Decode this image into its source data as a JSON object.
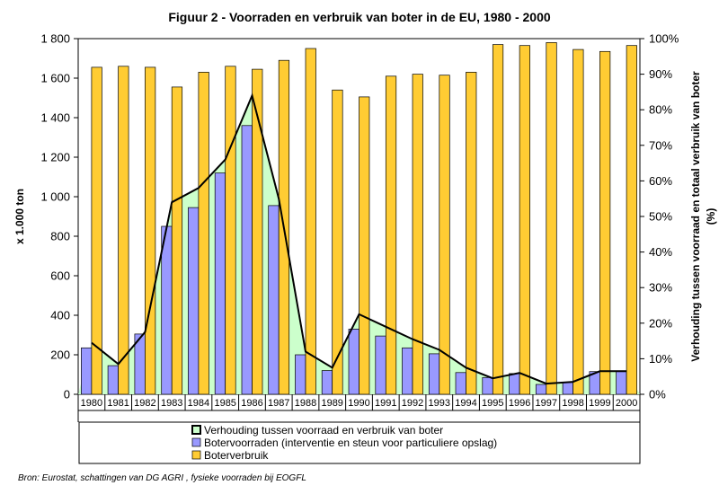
{
  "chart_data": {
    "type": "bar",
    "title": "Figuur 2 - Voorraden en verbruik van boter in de EU, 1980 - 2000",
    "categories": [
      "1980",
      "1981",
      "1982",
      "1983",
      "1984",
      "1985",
      "1986",
      "1987",
      "1988",
      "1989",
      "1990",
      "1991",
      "1992",
      "1993",
      "1994",
      "1995",
      "1996",
      "1997",
      "1998",
      "1999",
      "2000"
    ],
    "ylabel": "x 1.000 ton",
    "ylabel_right": "Verhouding tussen voorraad en totaal verbruik van boter (%)",
    "ylim": [
      0,
      1800
    ],
    "ylim_right": [
      0,
      100
    ],
    "y_ticks": [
      "0",
      "200",
      "400",
      "600",
      "800",
      "1 000",
      "1 200",
      "1 400",
      "1 600",
      "1 800"
    ],
    "y_ticks_right": [
      "0%",
      "10%",
      "20%",
      "30%",
      "40%",
      "50%",
      "60%",
      "70%",
      "80%",
      "90%",
      "100%"
    ],
    "grid": false,
    "legend_position": "bottom",
    "series": [
      {
        "name": "Verhouding tussen voorraad en verbruik van boter",
        "type": "area",
        "axis": "right",
        "color": "#ccffcc",
        "line_color": "#000000",
        "values": [
          14.5,
          8.5,
          17.5,
          54,
          58,
          66,
          84,
          55,
          12,
          7.5,
          22.5,
          19,
          15.5,
          12.5,
          7.5,
          4.5,
          6,
          3,
          3.5,
          6.5,
          6.5
        ]
      },
      {
        "name": "Botervoorraden (interventie en steun voor particuliere opslag)",
        "type": "bar",
        "axis": "left",
        "color": "#9999ff",
        "values": [
          235,
          145,
          305,
          850,
          945,
          1120,
          1360,
          955,
          200,
          120,
          330,
          295,
          235,
          205,
          110,
          85,
          105,
          50,
          60,
          115,
          115
        ]
      },
      {
        "name": "Boterverbruik",
        "type": "bar",
        "axis": "left",
        "color": "#ffcc33",
        "values": [
          1655,
          1660,
          1655,
          1555,
          1630,
          1660,
          1645,
          1690,
          1750,
          1540,
          1505,
          1610,
          1620,
          1615,
          1630,
          1770,
          1765,
          1780,
          1745,
          1735,
          1765
        ]
      }
    ]
  },
  "source": "Bron:  Eurostat, schattingen van DG AGRI , fysieke voorraden bij EOGFL"
}
